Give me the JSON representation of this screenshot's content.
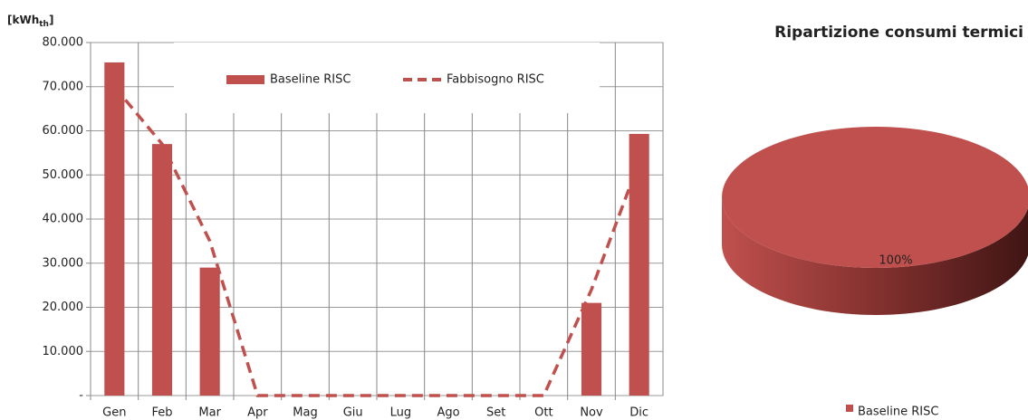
{
  "chart_data": [
    {
      "type": "bar",
      "ylabel": {
        "main": "[kWh",
        "sub": "th",
        "end": "]"
      },
      "categories": [
        "Gen",
        "Feb",
        "Mar",
        "Apr",
        "Mag",
        "Giu",
        "Lug",
        "Ago",
        "Set",
        "Ott",
        "Nov",
        "Dic"
      ],
      "series": [
        {
          "name": "Baseline RISC",
          "type": "bar",
          "color": "#c0504d",
          "values": [
            75500,
            57000,
            29000,
            0,
            0,
            0,
            0,
            0,
            0,
            0,
            21000,
            59300
          ]
        },
        {
          "name": "Fabbisogno RISC",
          "type": "line",
          "dashed": true,
          "color": "#c0504d",
          "values": [
            70000,
            57000,
            35000,
            0,
            0,
            0,
            0,
            0,
            0,
            0,
            24000,
            53000
          ]
        }
      ],
      "ylim": [
        0,
        80000
      ],
      "yticks": [
        {
          "value": 0,
          "label": "-"
        },
        {
          "value": 10000,
          "label": "10.000"
        },
        {
          "value": 20000,
          "label": "20.000"
        },
        {
          "value": 30000,
          "label": "30.000"
        },
        {
          "value": 40000,
          "label": "40.000"
        },
        {
          "value": 50000,
          "label": "50.000"
        },
        {
          "value": 60000,
          "label": "60.000"
        },
        {
          "value": 70000,
          "label": "70.000"
        },
        {
          "value": 80000,
          "label": "80.000"
        }
      ],
      "grid": true,
      "legend": "top"
    },
    {
      "type": "pie",
      "title": "Ripartizione consumi termici",
      "categories": [
        "Baseline RISC"
      ],
      "values": [
        100
      ],
      "value_labels": [
        "100%"
      ],
      "colors": [
        "#c0504d"
      ],
      "legend": "bottom"
    }
  ]
}
